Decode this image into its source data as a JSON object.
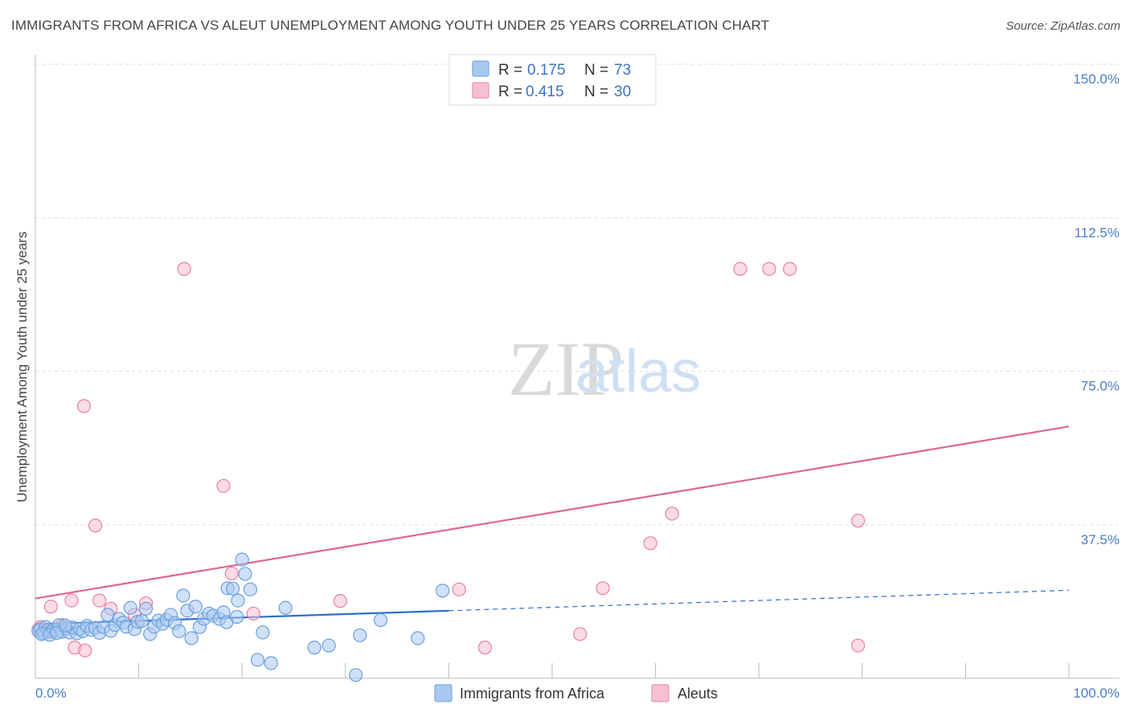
{
  "chart_data": {
    "type": "scatter",
    "title": "IMMIGRANTS FROM AFRICA VS ALEUT UNEMPLOYMENT AMONG YOUTH UNDER 25 YEARS CORRELATION CHART",
    "source": "Source: ZipAtlas.com",
    "ylabel": "Unemployment Among Youth under 25 years",
    "xlim": [
      0,
      100
    ],
    "ylim": [
      0,
      150
    ],
    "x_tick_labels": [
      "0.0%",
      "100.0%"
    ],
    "y_ticks": [
      {
        "value": 150,
        "label": "150.0%"
      },
      {
        "value": 112.5,
        "label": "112.5%"
      },
      {
        "value": 75,
        "label": "75.0%"
      },
      {
        "value": 37.5,
        "label": "37.5%"
      }
    ],
    "watermark": {
      "zip": "ZIP",
      "atlas": "atlas"
    },
    "legend": [
      {
        "r_label": "R = ",
        "r_value": "0.175",
        "n_label": "N = ",
        "n_value": "73"
      },
      {
        "r_label": "R = ",
        "r_value": "0.415",
        "n_label": "N = ",
        "n_value": "30"
      }
    ],
    "series": [
      {
        "name": "Immigrants from Africa",
        "color": "#a9c8f0",
        "stroke": "#6a9fdc",
        "trend_color": "#2d6fc9",
        "trend": {
          "x0": 0,
          "y0": 13.2,
          "x1": 40,
          "y1": 16.5,
          "dash_to": 100,
          "dash_y": 21.5
        },
        "points": [
          [
            0.3,
            11.5
          ],
          [
            0.5,
            12
          ],
          [
            0.8,
            11
          ],
          [
            1,
            12.5
          ],
          [
            1.2,
            11.8
          ],
          [
            1.5,
            11.3
          ],
          [
            1.8,
            12
          ],
          [
            2,
            11.7
          ],
          [
            2.3,
            13
          ],
          [
            2.6,
            11.4
          ],
          [
            3,
            12.2
          ],
          [
            3.3,
            11.2
          ],
          [
            3.6,
            12.4
          ],
          [
            4,
            11
          ],
          [
            4.3,
            12
          ],
          [
            4.6,
            11.5
          ],
          [
            5,
            12.8
          ],
          [
            5.4,
            11.8
          ],
          [
            5.8,
            12.3
          ],
          [
            6.2,
            11.1
          ],
          [
            6.6,
            12.5
          ],
          [
            7,
            15.5
          ],
          [
            7.3,
            11.6
          ],
          [
            7.7,
            13
          ],
          [
            8.1,
            14.5
          ],
          [
            8.5,
            13.6
          ],
          [
            8.8,
            12.6
          ],
          [
            9.2,
            17.2
          ],
          [
            9.6,
            12
          ],
          [
            9.9,
            13.8
          ],
          [
            10.3,
            14
          ],
          [
            10.7,
            17
          ],
          [
            11.1,
            10.8
          ],
          [
            11.5,
            12.6
          ],
          [
            11.9,
            14.1
          ],
          [
            12.3,
            13.3
          ],
          [
            12.7,
            14.3
          ],
          [
            13.1,
            15.5
          ],
          [
            13.5,
            13.5
          ],
          [
            13.9,
            11.5
          ],
          [
            14.3,
            20.2
          ],
          [
            14.7,
            16.5
          ],
          [
            15.1,
            9.8
          ],
          [
            15.5,
            17.5
          ],
          [
            15.9,
            12.5
          ],
          [
            16.3,
            14.5
          ],
          [
            16.8,
            15.8
          ],
          [
            17.2,
            15.3
          ],
          [
            17.8,
            14.5
          ],
          [
            18.2,
            16.1
          ],
          [
            18.6,
            22
          ],
          [
            19.1,
            21.9
          ],
          [
            19.6,
            19
          ],
          [
            20,
            29
          ],
          [
            20.3,
            25.5
          ],
          [
            20.8,
            21.7
          ],
          [
            21.5,
            4.5
          ],
          [
            22,
            11.2
          ],
          [
            22.8,
            3.7
          ],
          [
            24.2,
            17.2
          ],
          [
            27,
            7.5
          ],
          [
            28.4,
            8
          ],
          [
            31,
            0.8
          ],
          [
            31.4,
            10.5
          ],
          [
            33.4,
            14.2
          ],
          [
            37,
            9.8
          ],
          [
            39.4,
            21.4
          ],
          [
            18.5,
            13.7
          ],
          [
            19.5,
            15
          ],
          [
            0.6,
            10.8
          ],
          [
            1.4,
            10.6
          ],
          [
            2.1,
            11.1
          ],
          [
            2.9,
            12.9
          ]
        ]
      },
      {
        "name": "Aleuts",
        "color": "#f7c0d1",
        "stroke": "#e87fa3",
        "trend_color": "#e06490",
        "trend": {
          "x0": 0,
          "y0": 19.5,
          "x1": 100,
          "y1": 61.5
        },
        "points": [
          [
            0.5,
            12.5
          ],
          [
            1.2,
            11.5
          ],
          [
            1.5,
            17.5
          ],
          [
            2.6,
            13
          ],
          [
            3.5,
            19
          ],
          [
            3.8,
            7.5
          ],
          [
            4.7,
            66.5
          ],
          [
            4.8,
            6.8
          ],
          [
            5.8,
            37.3
          ],
          [
            6.2,
            19
          ],
          [
            7.3,
            17
          ],
          [
            9.6,
            15.5
          ],
          [
            10.7,
            18.3
          ],
          [
            14.4,
            100
          ],
          [
            18.2,
            47
          ],
          [
            19,
            25.6
          ],
          [
            21.1,
            15.8
          ],
          [
            29.5,
            18.9
          ],
          [
            41,
            21.7
          ],
          [
            43.5,
            7.5
          ],
          [
            52.7,
            10.8
          ],
          [
            54.9,
            22
          ],
          [
            59.5,
            33
          ],
          [
            61.6,
            40.2
          ],
          [
            68.2,
            100
          ],
          [
            71,
            100
          ],
          [
            73,
            100
          ],
          [
            79.6,
            38.5
          ],
          [
            79.6,
            8
          ],
          [
            0.3,
            11.9
          ]
        ]
      }
    ]
  }
}
